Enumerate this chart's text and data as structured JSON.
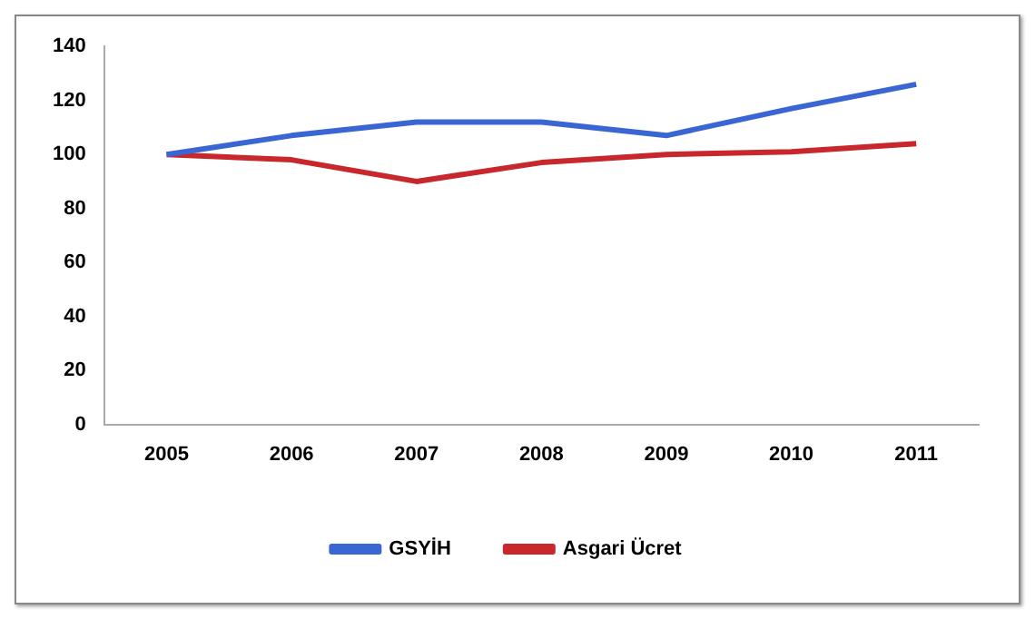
{
  "chart_data": {
    "type": "line",
    "categories": [
      "2005",
      "2006",
      "2007",
      "2008",
      "2009",
      "2010",
      "2011"
    ],
    "series": [
      {
        "name": "GSYİH",
        "color": "#3a66d4",
        "values": [
          100,
          107,
          112,
          112,
          107,
          117,
          126
        ]
      },
      {
        "name": "Asgari Ücret",
        "color": "#c8282c",
        "values": [
          100,
          98,
          90,
          97,
          100,
          101,
          104
        ]
      }
    ],
    "ylim": [
      0,
      140
    ],
    "yticks": [
      0,
      20,
      40,
      60,
      80,
      100,
      120,
      140
    ],
    "grid": false,
    "legend": "bottom",
    "marker": "none",
    "line_style": "solid"
  }
}
